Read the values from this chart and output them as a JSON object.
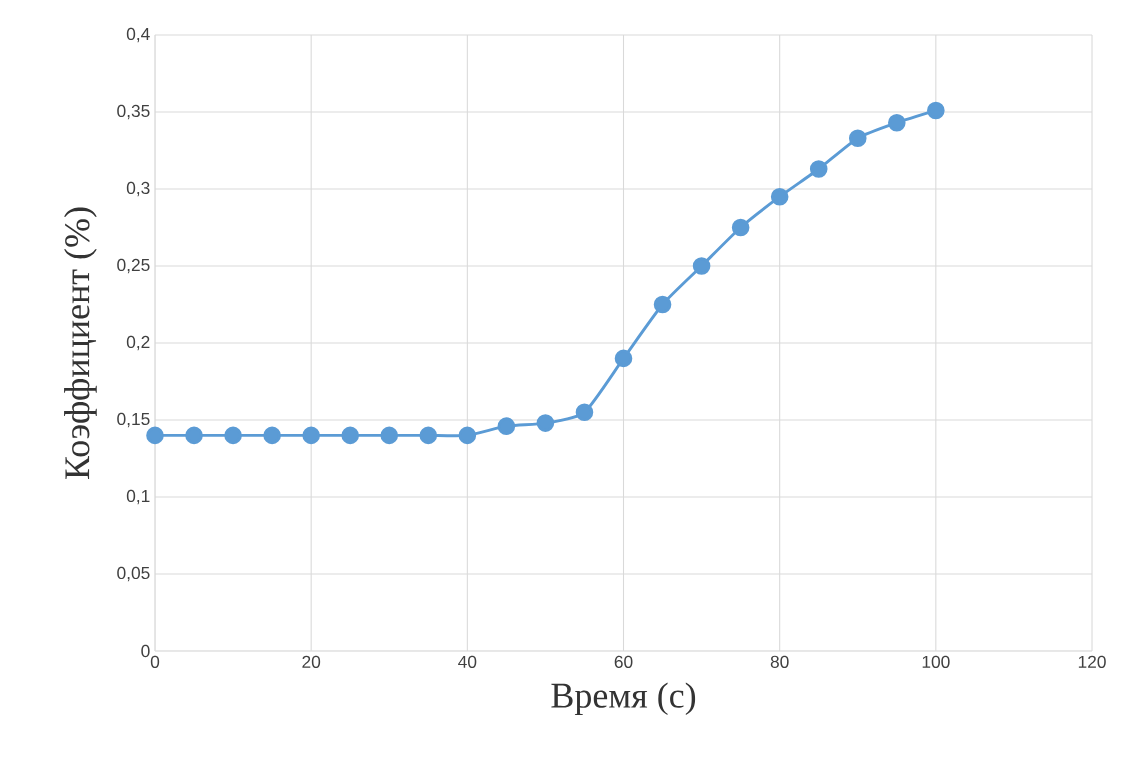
{
  "chart_data": {
    "type": "line",
    "xlabel": "Время (с)",
    "ylabel": "Коэффициент (%)",
    "x": [
      0,
      5,
      10,
      15,
      20,
      25,
      30,
      35,
      40,
      45,
      50,
      55,
      60,
      65,
      70,
      75,
      80,
      85,
      90,
      95,
      100
    ],
    "series": [
      {
        "color": "#5b9bd5",
        "values": [
          0.14,
          0.14,
          0.14,
          0.14,
          0.14,
          0.14,
          0.14,
          0.14,
          0.14,
          0.146,
          0.148,
          0.155,
          0.19,
          0.225,
          0.25,
          0.275,
          0.295,
          0.313,
          0.333,
          0.343,
          0.351
        ]
      }
    ],
    "xlim": [
      0,
      120
    ],
    "xticks": [
      0,
      20,
      40,
      60,
      80,
      100,
      120
    ],
    "ylim": [
      0,
      0.4
    ],
    "yticks": [
      0,
      {
        "value": 0.05,
        "label": "0,05"
      },
      {
        "value": 0.1,
        "label": "0,1"
      },
      {
        "value": 0.15,
        "label": "0,15"
      },
      {
        "value": 0.2,
        "label": "0,2"
      },
      {
        "value": 0.25,
        "label": "0,25"
      },
      {
        "value": 0.3,
        "label": "0,3"
      },
      {
        "value": 0.35,
        "label": "0,35"
      },
      {
        "value": 0.4,
        "label": "0,4"
      }
    ],
    "grid": true,
    "marker": "circle",
    "line_style": "solid"
  }
}
